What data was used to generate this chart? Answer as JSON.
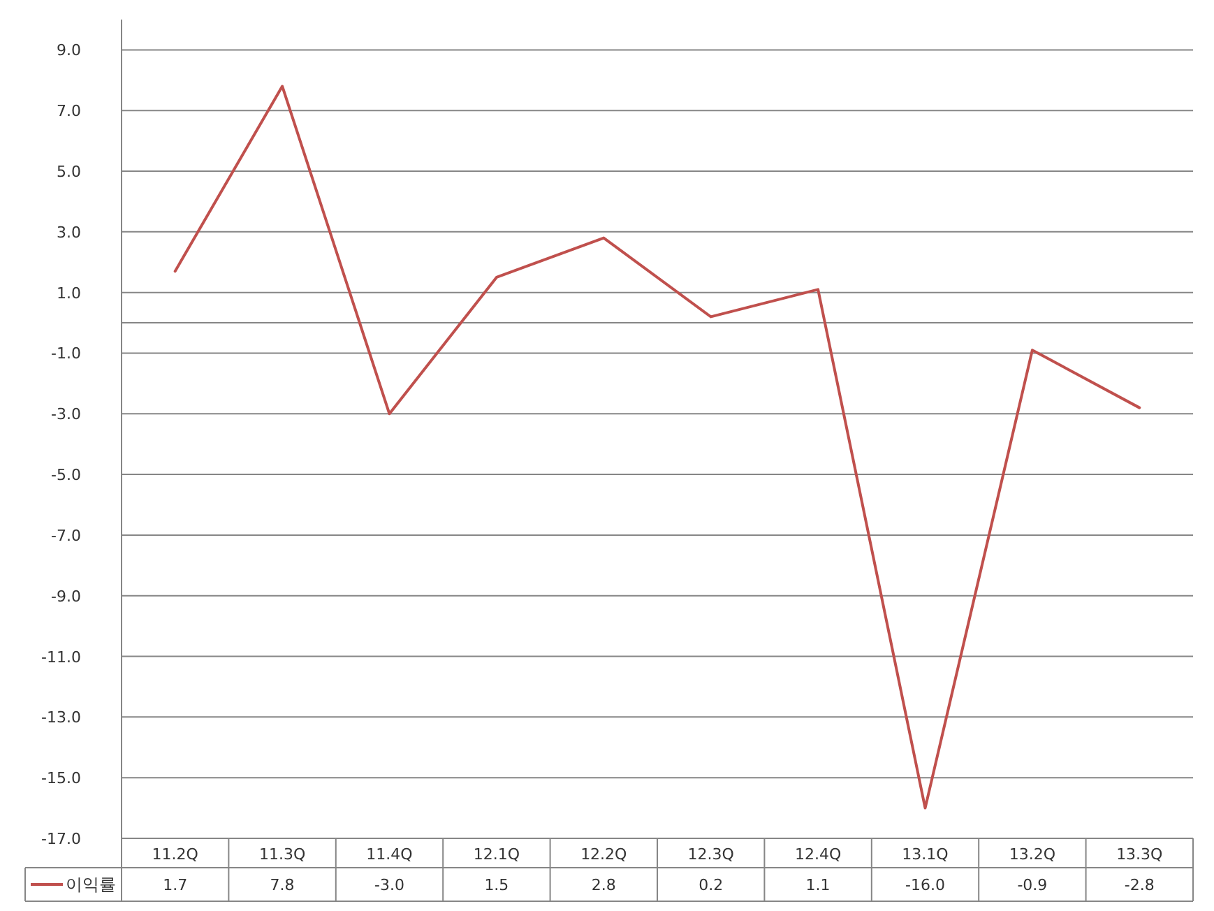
{
  "chart_data": {
    "type": "line",
    "categories": [
      "11.2Q",
      "11.3Q",
      "11.4Q",
      "12.1Q",
      "12.2Q",
      "12.3Q",
      "12.4Q",
      "13.1Q",
      "13.2Q",
      "13.3Q"
    ],
    "series": [
      {
        "name": "이익률",
        "color": "#c0504d",
        "values": [
          1.7,
          7.8,
          -3.0,
          1.5,
          2.8,
          0.2,
          1.1,
          -16.0,
          -0.9,
          -2.8
        ],
        "value_labels": [
          "1.7",
          "7.8",
          "-3.0",
          "1.5",
          "2.8",
          "0.2",
          "1.1",
          "-16.0",
          "-0.9",
          "-2.8"
        ]
      }
    ],
    "ylim": [
      -17,
      10
    ],
    "yticks": [
      {
        "value": 9,
        "label": "9.0"
      },
      {
        "value": 7,
        "label": "7.0"
      },
      {
        "value": 5,
        "label": "5.0"
      },
      {
        "value": 3,
        "label": "3.0"
      },
      {
        "value": 1,
        "label": "1.0"
      },
      {
        "value": -1,
        "label": "-1.0"
      },
      {
        "value": -3,
        "label": "-3.0"
      },
      {
        "value": -5,
        "label": "-5.0"
      },
      {
        "value": -7,
        "label": "-7.0"
      },
      {
        "value": -9,
        "label": "-9.0"
      },
      {
        "value": -11,
        "label": "-11.0"
      },
      {
        "value": -13,
        "label": "-13.0"
      },
      {
        "value": -15,
        "label": "-15.0"
      },
      {
        "value": -17,
        "label": "-17.0"
      }
    ],
    "grid": "y",
    "legend": "bottom",
    "marker": "none",
    "line_style": "solid"
  }
}
